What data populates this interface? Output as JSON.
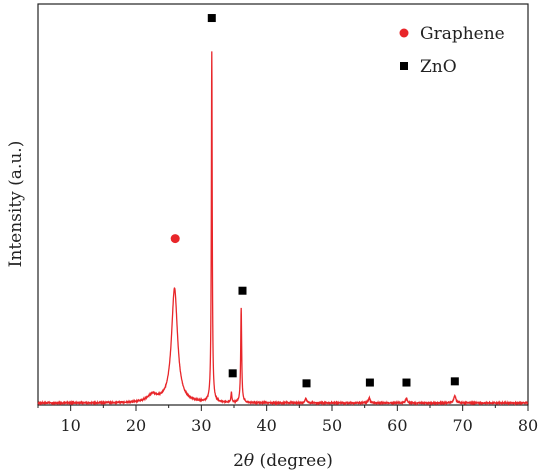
{
  "chart_data": {
    "type": "line",
    "title": "",
    "xlabel_prefix": "2",
    "xlabel_symbol": "θ",
    "xlabel_suffix": " (degree)",
    "ylabel": "Intensity (a.u.)",
    "xlim": [
      5,
      80
    ],
    "ylim": [
      0,
      100
    ],
    "xticks": [
      10,
      20,
      30,
      40,
      50,
      60,
      70,
      80
    ],
    "yticks_labeled": false,
    "grid": false,
    "legend_position": "top-right",
    "series": [
      {
        "color": "#e8262a",
        "baseline": 0.5,
        "peaks": [
          {
            "x": 22.5,
            "h": 1.8,
            "w": 0.9
          },
          {
            "x": 25.9,
            "h": 28.5,
            "w": 0.55
          },
          {
            "x": 31.6,
            "h": 87.5,
            "w": 0.08
          },
          {
            "x": 34.6,
            "h": 2.5,
            "w": 0.08
          },
          {
            "x": 36.1,
            "h": 23.5,
            "w": 0.09
          },
          {
            "x": 46.0,
            "h": 1.2,
            "w": 0.15
          },
          {
            "x": 55.7,
            "h": 1.3,
            "w": 0.15
          },
          {
            "x": 61.4,
            "h": 1.2,
            "w": 0.15
          },
          {
            "x": 68.8,
            "h": 1.8,
            "w": 0.2
          }
        ]
      }
    ],
    "markers": [
      {
        "label": "Graphene",
        "shape": "circle",
        "color": "#e8262a",
        "points": [
          {
            "x": 26.0,
            "y": 41.5
          }
        ]
      },
      {
        "label": "ZnO",
        "shape": "square",
        "color": "#000000",
        "points": [
          {
            "x": 31.6,
            "y": 96.5
          },
          {
            "x": 34.8,
            "y": 7.9
          },
          {
            "x": 36.3,
            "y": 28.5
          },
          {
            "x": 46.1,
            "y": 5.4
          },
          {
            "x": 55.8,
            "y": 5.6
          },
          {
            "x": 61.4,
            "y": 5.6
          },
          {
            "x": 68.8,
            "y": 5.9
          }
        ]
      }
    ]
  }
}
